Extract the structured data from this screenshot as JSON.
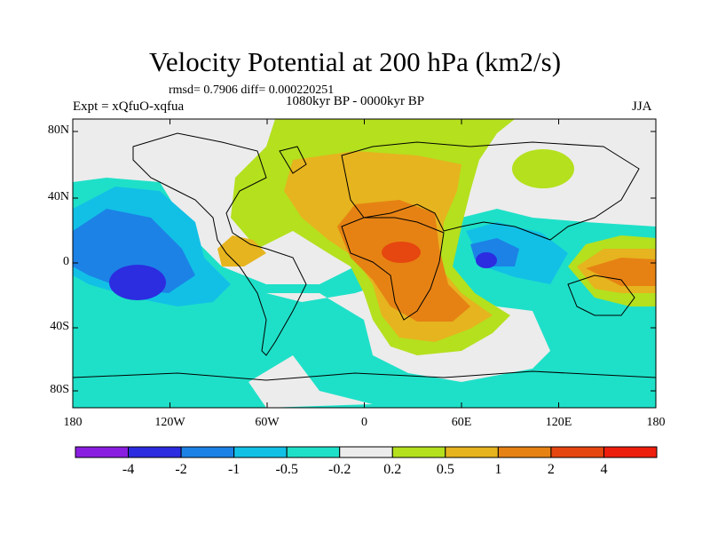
{
  "title": "Velocity Potential at 200 hPa (km2/s)",
  "stats": "rmsd= 0.7906 diff= 0.000220251",
  "experiment": "Expt = xQfuO-xqfua",
  "period": "1080kyr BP - 0000kyr BP",
  "season": "JJA",
  "map": {
    "lat_ticks": [
      "80N",
      "40N",
      "0",
      "40S",
      "80S"
    ],
    "lon_ticks": [
      "180",
      "120W",
      "60W",
      "0",
      "60E",
      "120E",
      "180"
    ]
  },
  "colorbar": {
    "labels": [
      "-4",
      "-2",
      "-1",
      "-0.5",
      "-0.2",
      "0.2",
      "0.5",
      "1",
      "2",
      "4"
    ],
    "colors": [
      "#8a1ee0",
      "#2c2ce0",
      "#1c82e6",
      "#12c0e6",
      "#1ee0c8",
      "#ececec",
      "#b4e01e",
      "#e6b41e",
      "#e68214",
      "#e6460f",
      "#ee1e0c"
    ]
  }
}
